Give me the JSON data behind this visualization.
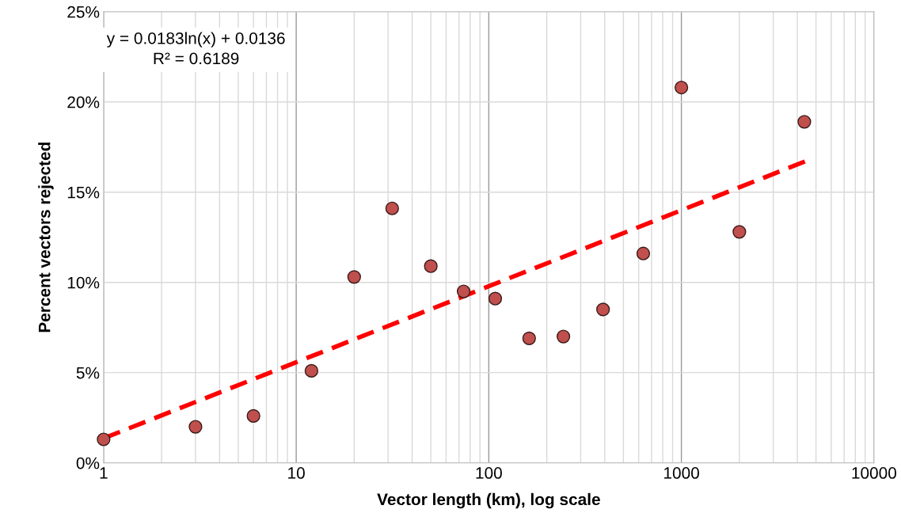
{
  "chart_data": {
    "type": "scatter",
    "xlabel": "Vector length (km), log scale",
    "ylabel": "Percent vectors rejected",
    "log": "x",
    "grid": true,
    "marker": "circle",
    "xlim": [
      1,
      10000
    ],
    "xticks": [
      1,
      10,
      100,
      1000,
      10000
    ],
    "ylim": [
      0,
      25
    ],
    "yticks": [
      {
        "value": 0,
        "label": "0%"
      },
      {
        "value": 5,
        "label": "5%"
      },
      {
        "value": 10,
        "label": "10%"
      },
      {
        "value": 15,
        "label": "15%"
      },
      {
        "value": 20,
        "label": "20%"
      },
      {
        "value": 25,
        "label": "25%"
      }
    ],
    "annotations": [
      "y = 0.0183ln(x) + 0.0136",
      "R² = 0.6189"
    ],
    "series": [
      {
        "color": "#c0504d",
        "x": [
          1,
          3,
          6,
          12,
          20,
          31.5,
          50,
          74,
          108,
          162,
          244,
          392,
          634,
          1000,
          2000,
          4350
        ],
        "values": [
          1.3,
          2.0,
          2.6,
          5.1,
          10.3,
          14.1,
          10.9,
          9.5,
          9.1,
          6.9,
          7.0,
          8.5,
          11.6,
          20.8,
          12.8,
          18.9
        ]
      },
      {
        "type": "line",
        "color": "#ff0000",
        "line_style": "dashed",
        "marker": "none",
        "x": [
          1,
          4500
        ],
        "values": [
          1.36,
          16.75
        ]
      }
    ]
  }
}
